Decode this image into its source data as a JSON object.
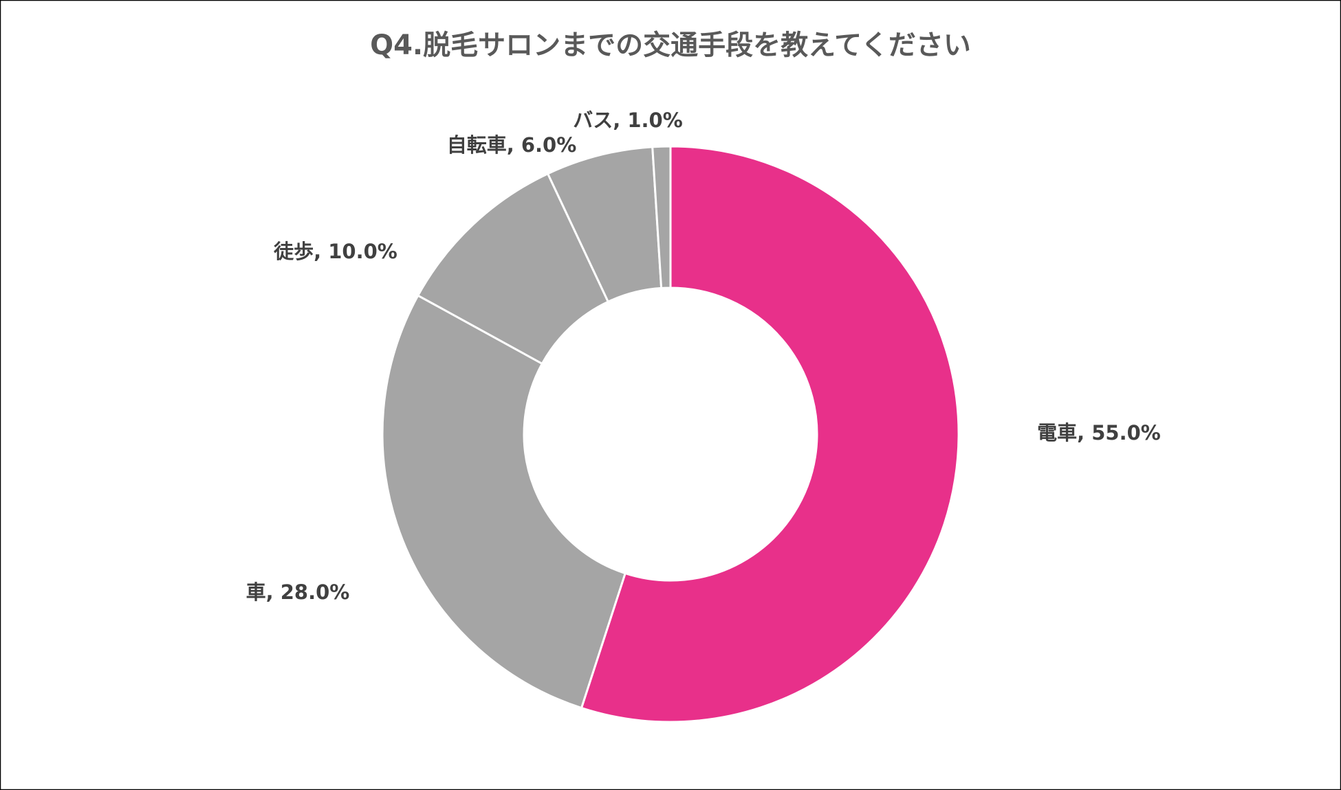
{
  "chart_data": {
    "type": "donut",
    "title": "Q4.脱毛サロンまでの交通手段を教えてください",
    "values": [
      55,
      28,
      10,
      6,
      1
    ],
    "value_labels": [
      "電車, 55.0%",
      "車, 28.0%",
      "徒歩, 10.0%",
      "自転車, 6.0%",
      "バス, 1.0%"
    ],
    "colors": [
      "#e8308a",
      "#a5a5a5",
      "#a5a5a5",
      "#a5a5a5",
      "#a5a5a5"
    ]
  }
}
